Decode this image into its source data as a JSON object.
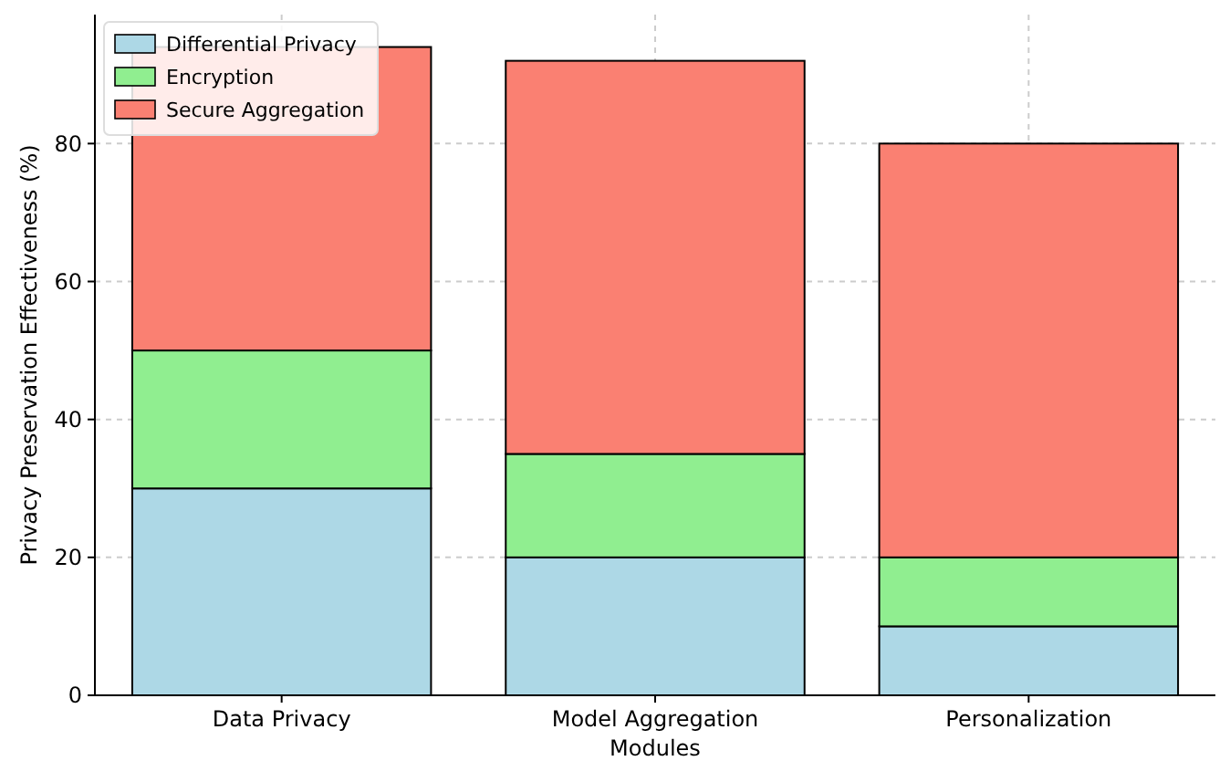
{
  "chart_data": {
    "type": "bar",
    "stacked": true,
    "xlabel": "Modules",
    "ylabel": "Privacy Preservation Effectiveness (%)",
    "categories": [
      "Data Privacy",
      "Model Aggregation",
      "Personalization"
    ],
    "series": [
      {
        "name": "Differential Privacy",
        "color": "#add8e6",
        "values": [
          30,
          20,
          10
        ]
      },
      {
        "name": "Encryption",
        "color": "#90ee90",
        "values": [
          20,
          15,
          10
        ]
      },
      {
        "name": "Secure Aggregation",
        "color": "#fa8072",
        "values": [
          44,
          57,
          60
        ]
      }
    ],
    "ylim": [
      0,
      98.7
    ],
    "yticks": [
      0,
      20,
      40,
      60,
      80
    ],
    "grid": true,
    "legend": "top left"
  }
}
